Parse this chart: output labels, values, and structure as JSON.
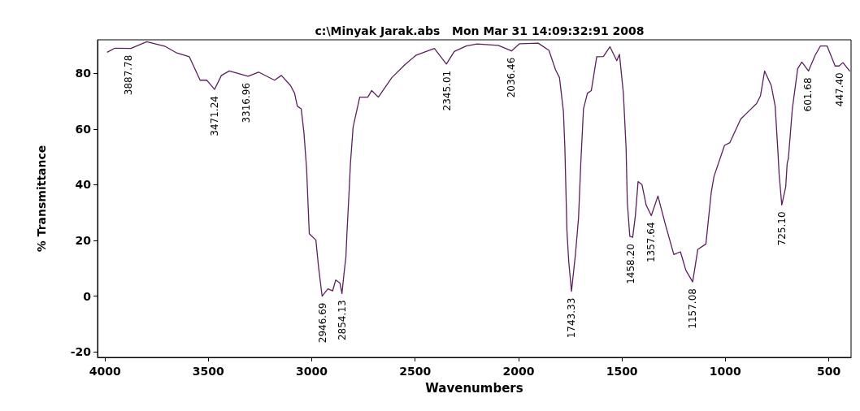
{
  "chart_data": {
    "type": "line",
    "title": "c:\\Minyak Jarak.abs   Mon Mar 31 14:09:32:91 2008",
    "xlabel": "Wavenumbers",
    "ylabel": "% Transmittance",
    "xlim": [
      4036,
      392
    ],
    "xticks": [
      4000,
      3500,
      3000,
      2500,
      2000,
      1500,
      1000,
      500
    ],
    "ylim": [
      -22,
      92
    ],
    "yticks": [
      -20,
      0,
      20,
      40,
      60,
      80
    ],
    "grid": false,
    "marker": "none",
    "line_style": "solid",
    "series": [
      {
        "color": "#5b1f5e",
        "x": [
          3988,
          3952,
          3875,
          3798,
          3708,
          3656,
          3592,
          3540,
          3508,
          3470,
          3437,
          3399,
          3308,
          3257,
          3180,
          3147,
          3103,
          3083,
          3070,
          3051,
          3038,
          3025,
          3012,
          2980,
          2967,
          2950,
          2922,
          2899,
          2884,
          2864,
          2854,
          2845,
          2835,
          2830,
          2819,
          2813,
          2800,
          2768,
          2729,
          2710,
          2678,
          2613,
          2549,
          2497,
          2407,
          2349,
          2311,
          2253,
          2201,
          2098,
          2034,
          1995,
          1905,
          1853,
          1821,
          1802,
          1783,
          1776,
          1766,
          1757,
          1744,
          1725,
          1710,
          1699,
          1686,
          1667,
          1648,
          1622,
          1590,
          1558,
          1525,
          1512,
          1493,
          1480,
          1474,
          1462,
          1448,
          1435,
          1422,
          1403,
          1383,
          1358,
          1326,
          1288,
          1249,
          1217,
          1191,
          1158,
          1133,
          1094,
          1068,
          1055,
          1004,
          978,
          926,
          888,
          849,
          830,
          810,
          778,
          759,
          746,
          740,
          727,
          708,
          701,
          695,
          676,
          650,
          630,
          598,
          566,
          540,
          508,
          469,
          450,
          431,
          399
        ],
        "values": [
          87.6,
          89.0,
          88.9,
          91.3,
          89.6,
          87.4,
          85.9,
          77.5,
          77.5,
          74.2,
          79.2,
          80.8,
          78.9,
          80.4,
          77.5,
          79.2,
          75.6,
          72.8,
          68.2,
          67.2,
          58.8,
          45.7,
          22.4,
          20.1,
          10.3,
          0,
          2.6,
          1.9,
          5.8,
          4.7,
          0.9,
          7.5,
          14,
          22.4,
          38.3,
          47.6,
          60.7,
          71.4,
          71.4,
          73.8,
          71.4,
          78.4,
          83.1,
          86.4,
          88.9,
          83.3,
          87.8,
          89.8,
          90.5,
          90.0,
          88,
          90.6,
          90.8,
          88.2,
          81.2,
          78.4,
          66.3,
          53.2,
          23.3,
          12.1,
          1.7,
          14.9,
          28,
          47.6,
          67.2,
          72.8,
          73.8,
          85.9,
          86,
          89.5,
          84.5,
          86.8,
          72.8,
          53.2,
          33.6,
          21.5,
          21.1,
          28.9,
          41.1,
          40,
          32.7,
          28.9,
          35.9,
          25.2,
          14.9,
          15.9,
          9.3,
          5.1,
          16.8,
          18.7,
          37.3,
          42.9,
          54.1,
          55.1,
          63.5,
          66.3,
          69.1,
          71.9,
          80.8,
          75.6,
          68.2,
          52.3,
          43.9,
          32.7,
          39.2,
          47.6,
          49.5,
          67.2,
          81.7,
          84,
          80.8,
          86.4,
          89.8,
          89.8,
          82.6,
          82.6,
          83.8,
          80.8
        ]
      }
    ],
    "annotations": [
      {
        "text": "3887.78",
        "x": 3887.78,
        "y": 88.9
      },
      {
        "text": "3471.24",
        "x": 3471.24,
        "y": 74.2
      },
      {
        "text": "3316.96",
        "x": 3316.96,
        "y": 78.9
      },
      {
        "text": "2946.69",
        "x": 2946.69,
        "y": 0
      },
      {
        "text": "2854.13",
        "x": 2854.13,
        "y": 0.9
      },
      {
        "text": "2345.01",
        "x": 2345.01,
        "y": 83.3
      },
      {
        "text": "2036.46",
        "x": 2036.46,
        "y": 88
      },
      {
        "text": "1743.33",
        "x": 1743.33,
        "y": 1.7
      },
      {
        "text": "1458.20",
        "x": 1458.2,
        "y": 21.1
      },
      {
        "text": "1357.64",
        "x": 1357.64,
        "y": 28.9
      },
      {
        "text": "1157.08",
        "x": 1157.08,
        "y": 5.1
      },
      {
        "text": "725.10",
        "x": 725.1,
        "y": 32.7
      },
      {
        "text": "601.68",
        "x": 601.68,
        "y": 80.8
      },
      {
        "text": "447.40",
        "x": 447.4,
        "y": 82.6
      }
    ]
  }
}
